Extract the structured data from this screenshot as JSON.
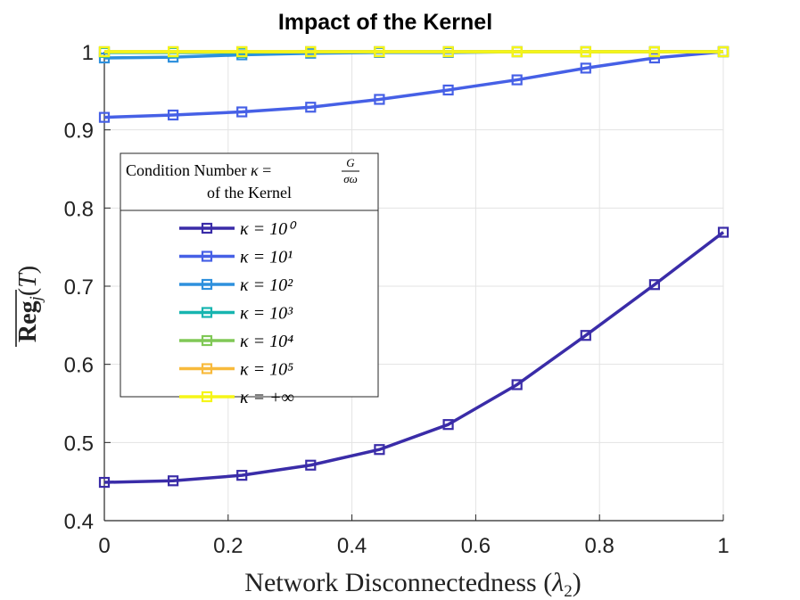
{
  "chart_data": {
    "type": "line",
    "title": "Impact of the Kernel",
    "xlabel": "Network Disconnectedness (λ2)",
    "ylabel": "Reg_j(T)",
    "xlim": [
      0,
      1
    ],
    "ylim": [
      0.4,
      1
    ],
    "grid": true,
    "xticks": [
      "0",
      "0.2",
      "0.4",
      "0.6",
      "0.8",
      "1"
    ],
    "yticks": [
      "0.4",
      "0.5",
      "0.6",
      "0.7",
      "0.8",
      "0.9",
      "1"
    ],
    "x": [
      0,
      0.1111,
      0.2222,
      0.3333,
      0.4444,
      0.5556,
      0.6667,
      0.7778,
      0.8889,
      1
    ],
    "legend": {
      "title_line1": "Condition Number κ = G/σω",
      "title_line2": "of the Kernel",
      "placement": "middle-left"
    },
    "series": [
      {
        "name": "κ = 10^0",
        "label": "κ = 10⁰",
        "color": "#3a2ca8",
        "values": [
          0.449,
          0.451,
          0.458,
          0.471,
          0.491,
          0.523,
          0.574,
          0.637,
          0.702,
          0.769
        ]
      },
      {
        "name": "κ = 10^1",
        "label": "κ = 10¹",
        "color": "#4660e6",
        "values": [
          0.916,
          0.919,
          0.923,
          0.929,
          0.939,
          0.951,
          0.964,
          0.979,
          0.992,
          1.0
        ]
      },
      {
        "name": "κ = 10^2",
        "label": "κ = 10²",
        "color": "#2e90dd",
        "values": [
          0.992,
          0.993,
          0.996,
          0.998,
          0.999,
          0.999,
          1.0,
          1.0,
          1.0,
          1.0
        ]
      },
      {
        "name": "κ = 10^3",
        "label": "κ = 10³",
        "color": "#17b5b0",
        "values": [
          0.999,
          0.999,
          0.999,
          1.0,
          1.0,
          1.0,
          1.0,
          1.0,
          1.0,
          1.0
        ]
      },
      {
        "name": "κ = 10^4",
        "label": "κ = 10⁴",
        "color": "#80c856",
        "values": [
          1.0,
          1.0,
          1.0,
          1.0,
          1.0,
          1.0,
          1.0,
          1.0,
          1.0,
          1.0
        ]
      },
      {
        "name": "κ = 10^5",
        "label": "κ = 10⁵",
        "color": "#f8ba3c",
        "values": [
          1.0,
          1.0,
          1.0,
          1.0,
          1.0,
          1.0,
          1.0,
          1.0,
          1.0,
          1.0
        ]
      },
      {
        "name": "κ = +∞",
        "label": "κ = +∞",
        "color": "#f5f518",
        "values": [
          1.0,
          1.0,
          1.0,
          1.0,
          1.0,
          1.0,
          1.0,
          1.0,
          1.0,
          1.0
        ]
      }
    ]
  }
}
